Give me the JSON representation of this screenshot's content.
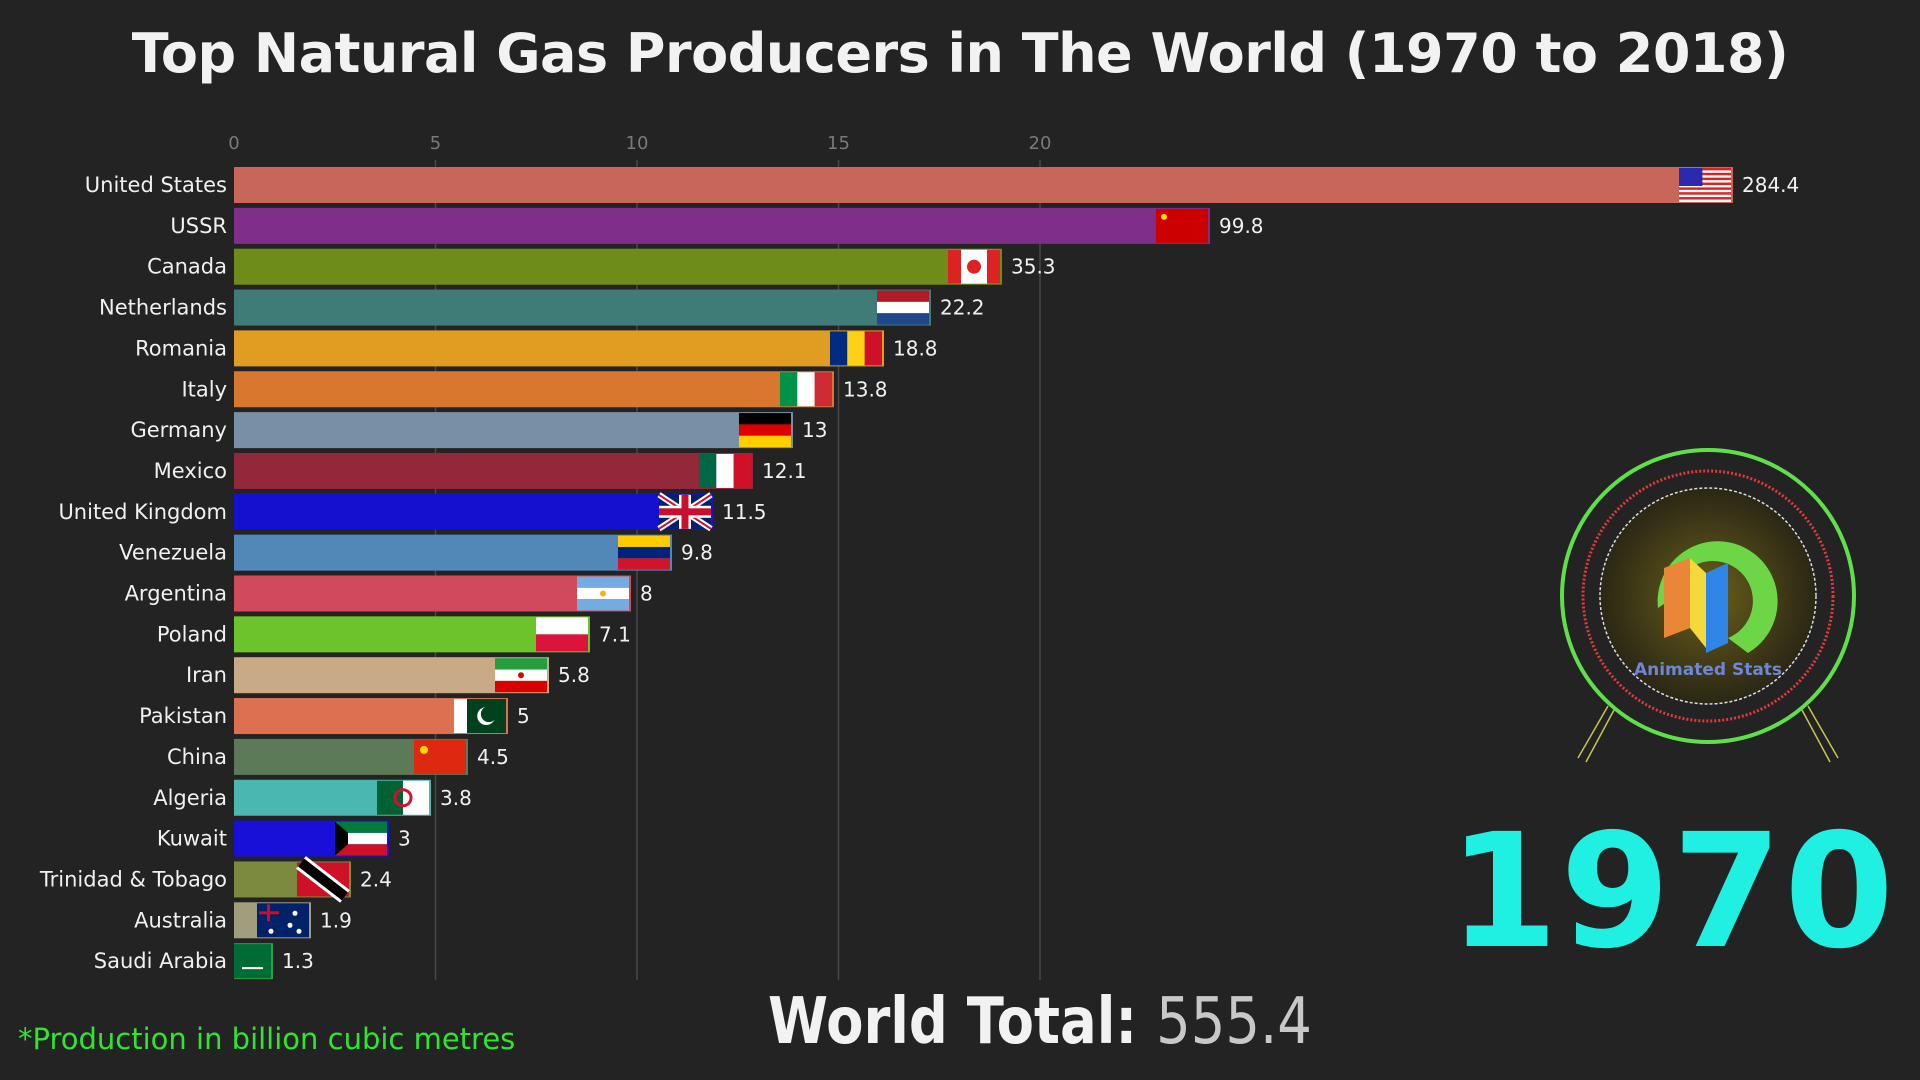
{
  "title": "Top Natural Gas Producers in The World (1970 to 2018)",
  "year": "1970",
  "world_total": {
    "label": "World Total:",
    "value": "555.4"
  },
  "footnote": "*Production in billion cubic metres",
  "logo": {
    "text": "Animated Stats",
    "icon": "animated-stats-logo"
  },
  "chart_data": {
    "type": "bar",
    "orientation": "horizontal",
    "title": "Top Natural Gas Producers in The World (1970 to 2018)",
    "unit": "billion cubic metres",
    "x_ticks": [
      "0",
      "5",
      "10",
      "15",
      "20"
    ],
    "grid": true,
    "categories": [
      "United States",
      "USSR",
      "Canada",
      "Netherlands",
      "Romania",
      "Italy",
      "Germany",
      "Mexico",
      "United Kingdom",
      "Venezuela",
      "Argentina",
      "Poland",
      "Iran",
      "Pakistan",
      "China",
      "Algeria",
      "Kuwait",
      "Trinidad & Tobago",
      "Australia",
      "Saudi Arabia"
    ],
    "values": [
      284.4,
      99.8,
      35.3,
      22.2,
      18.8,
      13.8,
      13,
      12.1,
      11.5,
      9.8,
      8,
      7.1,
      5.8,
      5,
      4.5,
      3.8,
      3,
      2.4,
      1.9,
      1.3
    ],
    "value_labels": [
      "284.4",
      "99.8",
      "35.3",
      "22.2",
      "18.8",
      "13.8",
      "13",
      "12.1",
      "11.5",
      "9.8",
      "8",
      "7.1",
      "5.8",
      "5",
      "4.5",
      "3.8",
      "3",
      "2.4",
      "1.9",
      "1.3"
    ],
    "colors": [
      "#c8665a",
      "#802f88",
      "#6e8c1a",
      "#3f7c78",
      "#e09d22",
      "#d9772f",
      "#7890a6",
      "#93283a",
      "#1410d0",
      "#5088b8",
      "#d14a5c",
      "#6cc42c",
      "#c8ab86",
      "#dd7050",
      "#5c7a58",
      "#4ab8b0",
      "#1810d8",
      "#7c8a40",
      "#a09e7c",
      "#2aa040"
    ],
    "flags": [
      "us-flag",
      "ussr-flag",
      "canada-flag",
      "netherlands-flag",
      "romania-flag",
      "italy-flag",
      "germany-flag",
      "mexico-flag",
      "uk-flag",
      "venezuela-flag",
      "argentina-flag",
      "poland-flag",
      "iran-flag",
      "pakistan-flag",
      "china-flag",
      "algeria-flag",
      "kuwait-flag",
      "trinidad-tobago-flag",
      "australia-flag",
      "saudi-arabia-flag"
    ]
  }
}
